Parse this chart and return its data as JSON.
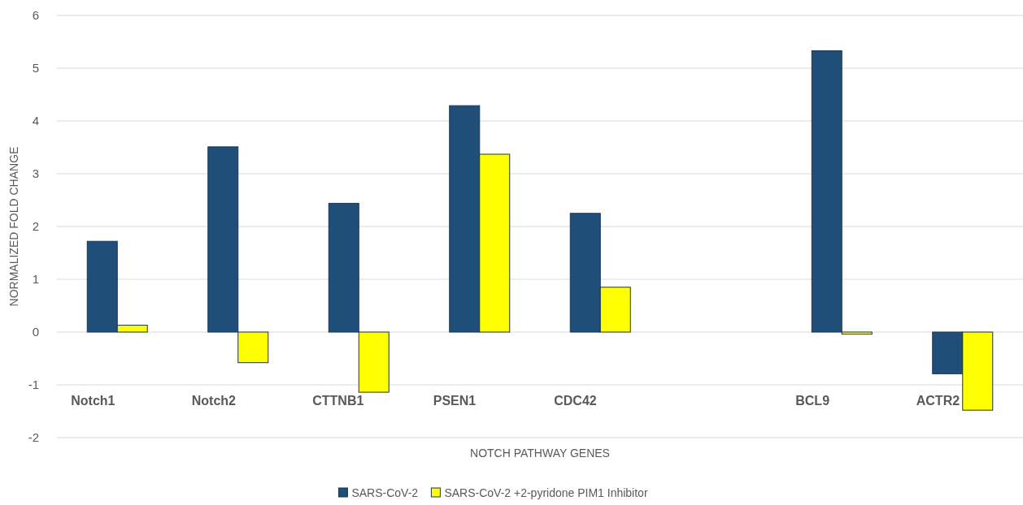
{
  "chart_data": {
    "type": "bar",
    "xlabel": "NOTCH PATHWAY  GENES",
    "ylabel": "NORMALIZED FOLD CHANGE",
    "categories": [
      "Notch1",
      "Notch2",
      "CTTNB1",
      "PSEN1",
      "CDC42",
      null,
      "BCL9",
      "ACTR2"
    ],
    "series": [
      {
        "name": "SARS-CoV-2",
        "color": "#1f4e79",
        "values": [
          1.72,
          3.51,
          2.44,
          4.29,
          2.25,
          null,
          5.33,
          -0.79
        ]
      },
      {
        "name": "SARS-CoV-2 +2-pyridone PIM1 Inhibitor",
        "color": "#ffff00",
        "values": [
          0.13,
          -0.58,
          -1.14,
          3.37,
          0.85,
          null,
          -0.04,
          -1.48
        ]
      }
    ],
    "ylim": [
      -2,
      6
    ],
    "yticks": [
      -2,
      -1,
      0,
      1,
      2,
      3,
      4,
      5,
      6
    ],
    "grid": "y",
    "legend": "bottom"
  }
}
